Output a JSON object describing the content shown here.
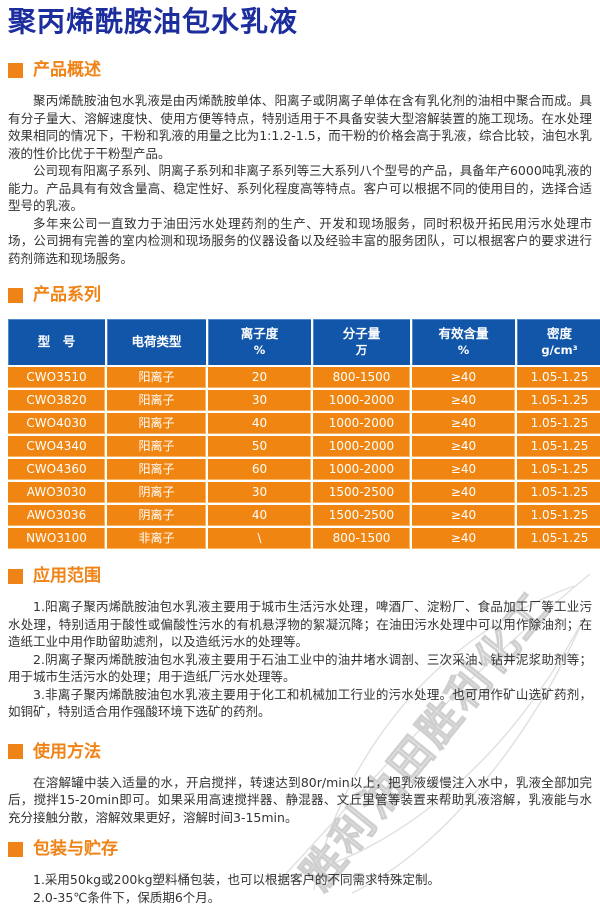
{
  "title": "聚丙烯酰胺油包水乳液",
  "colors": {
    "title_blue": "#1c2d9e",
    "section_orange": "#f08316",
    "table_header_blue": "#1156a9",
    "table_row_orange": "#f08611",
    "table_text": "#ffffff",
    "body_text": "#333333"
  },
  "overview": {
    "heading": "产品概述",
    "paragraphs": [
      "聚丙烯酰胺油包水乳液是由丙烯酰胺单体、阳离子或阴离子单体在含有乳化剂的油相中聚合而成。具有分子量大、溶解速度快、使用方便等特点，特别适用于不具备安装大型溶解装置的施工现场。在水处理效果相同的情况下，干粉和乳液的用量之比为1:1.2-1.5，而干粉的价格会高于乳液，综合比较，油包水乳液的性价比优于干粉型产品。",
      "公司现有阳离子系列、阴离子系列和非离子系列等三大系列八个型号的产品，具备年产6000吨乳液的能力。产品具有有效含量高、稳定性好、系列化程度高等特点。客户可以根据不同的使用目的，选择合适型号的乳液。",
      "多年来公司一直致力于油田污水处理药剂的生产、开发和现场服务，同时积极开拓民用污水处理市场，公司拥有完善的室内检测和现场服务的仪器设备以及经验丰富的服务团队，可以根据客户的要求进行药剂筛选和现场服务。"
    ]
  },
  "series": {
    "heading": "产品系列",
    "table": {
      "headers": [
        {
          "title": "型　号",
          "unit": ""
        },
        {
          "title": "电荷类型",
          "unit": ""
        },
        {
          "title": "离子度",
          "unit": "%"
        },
        {
          "title": "分子量",
          "unit": "万"
        },
        {
          "title": "有效含量",
          "unit": "%"
        },
        {
          "title": "密度",
          "unit": "g/cm³"
        }
      ],
      "rows": [
        [
          "CWO3510",
          "阳离子",
          "20",
          "800-1500",
          "≥40",
          "1.05-1.25"
        ],
        [
          "CWO3820",
          "阳离子",
          "30",
          "1000-2000",
          "≥40",
          "1.05-1.25"
        ],
        [
          "CWO4030",
          "阳离子",
          "40",
          "1000-2000",
          "≥40",
          "1.05-1.25"
        ],
        [
          "CWO4340",
          "阳离子",
          "50",
          "1000-2000",
          "≥40",
          "1.05-1.25"
        ],
        [
          "CWO4360",
          "阳离子",
          "60",
          "1000-2000",
          "≥40",
          "1.05-1.25"
        ],
        [
          "AWO3030",
          "阴离子",
          "30",
          "1500-2500",
          "≥40",
          "1.05-1.25"
        ],
        [
          "AWO3036",
          "阴离子",
          "40",
          "1500-2500",
          "≥40",
          "1.05-1.25"
        ],
        [
          "NWO3100",
          "非离子",
          "\\",
          "800-1500",
          "≥40",
          "1.05-1.25"
        ]
      ]
    }
  },
  "application": {
    "heading": "应用范围",
    "paragraphs": [
      "1.阳离子聚丙烯酰胺油包水乳液主要用于城市生活污水处理，啤酒厂、淀粉厂、食品加工厂等工业污水处理，特别适用于酸性或偏酸性污水的有机悬浮物的絮凝沉降；在油田污水处理中可以用作除油剂；在造纸工业中用作助留助滤剂，以及造纸污水的处理等。",
      "2.阴离子聚丙烯酰胺油包水乳液主要用于石油工业中的油井堵水调剖、三次采油、钻井泥浆助剂等；用于城市生活污水的处理；用于造纸厂污水处理等。",
      "3.非离子聚丙烯酰胺油包水乳液主要用于化工和机械加工行业的污水处理。也可用作矿山选矿药剂，如铜矿，特别适合用作强酸环境下选矿的药剂。"
    ]
  },
  "usage": {
    "heading": "使用方法",
    "paragraphs": [
      "在溶解罐中装入适量的水，开启搅拌，转速达到80r/min以上，把乳液缓慢注入水中，乳液全部加完后，搅拌15-20min即可。如果采用高速搅拌器、静混器、文丘里管等装置来帮助乳液溶解，乳液能与水充分接触分散，溶解效果更好，溶解时间3-15min。"
    ]
  },
  "packaging": {
    "heading": "包装与贮存",
    "paragraphs": [
      "1.采用50kg或200kg塑料桶包装，也可以根据客户的不同需求特殊定制。",
      "2.0-35℃条件下，保质期6个月。"
    ]
  },
  "watermark": {
    "text": "胜利油田胜利化工"
  }
}
